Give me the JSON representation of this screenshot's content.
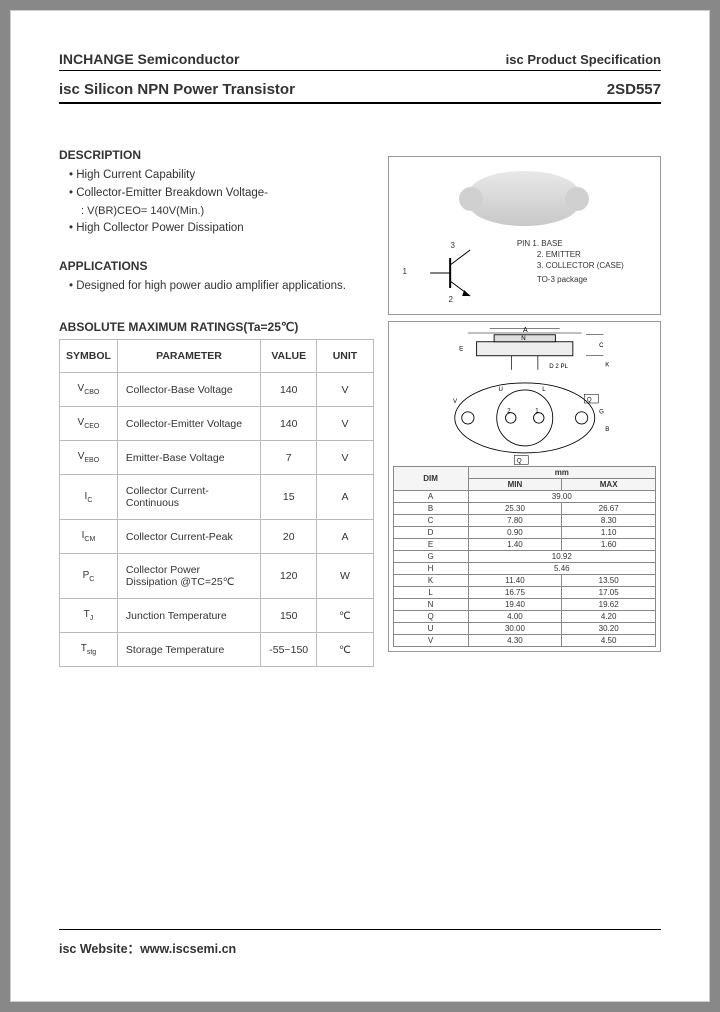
{
  "header": {
    "company": "INCHANGE Semiconductor",
    "doc_type": "isc Product Specification"
  },
  "subheader": {
    "title": "isc Silicon NPN Power Transistor",
    "part_no": "2SD557"
  },
  "description": {
    "heading": "DESCRIPTION",
    "items": [
      "High Current Capability",
      "Collector-Emitter Breakdown Voltage-"
    ],
    "sub_item": ": V(BR)CEO= 140V(Min.)",
    "tail": "High Collector Power Dissipation"
  },
  "applications": {
    "heading": "APPLICATIONS",
    "text": "Designed for high power audio amplifier applications."
  },
  "ratings": {
    "heading": "ABSOLUTE MAXIMUM RATINGS(Ta=25℃)",
    "columns": [
      "SYMBOL",
      "PARAMETER",
      "VALUE",
      "UNIT"
    ],
    "rows": [
      {
        "sym": "V",
        "sub": "CBO",
        "param": "Collector-Base Voltage",
        "value": "140",
        "unit": "V"
      },
      {
        "sym": "V",
        "sub": "CEO",
        "param": "Collector-Emitter Voltage",
        "value": "140",
        "unit": "V"
      },
      {
        "sym": "V",
        "sub": "EBO",
        "param": "Emitter-Base Voltage",
        "value": "7",
        "unit": "V"
      },
      {
        "sym": "I",
        "sub": "C",
        "param": "Collector Current-Continuous",
        "value": "15",
        "unit": "A"
      },
      {
        "sym": "I",
        "sub": "CM",
        "param": "Collector Current-Peak",
        "value": "20",
        "unit": "A"
      },
      {
        "sym": "P",
        "sub": "C",
        "param": "Collector Power Dissipation @TC=25℃",
        "value": "120",
        "unit": "W"
      },
      {
        "sym": "T",
        "sub": "J",
        "param": "Junction Temperature",
        "value": "150",
        "unit": "℃"
      },
      {
        "sym": "T",
        "sub": "stg",
        "param": "Storage Temperature",
        "value": "-55~150",
        "unit": "℃"
      }
    ]
  },
  "package": {
    "pin_heading": "PIN",
    "pins": [
      "1. BASE",
      "2. EMITTER",
      "3. COLLECTOR (CASE)"
    ],
    "pkg_name": "TO-3 package",
    "pin_nums": [
      "1",
      "2",
      "3"
    ]
  },
  "dimensions": {
    "unit_label": "mm",
    "head": [
      "DIM",
      "MIN",
      "MAX"
    ],
    "rows": [
      [
        "A",
        "39.00",
        ""
      ],
      [
        "B",
        "25.30",
        "26.67"
      ],
      [
        "C",
        "7.80",
        "8.30"
      ],
      [
        "D",
        "0.90",
        "1.10"
      ],
      [
        "E",
        "1.40",
        "1.60"
      ],
      [
        "G",
        "10.92",
        ""
      ],
      [
        "H",
        "5.46",
        ""
      ],
      [
        "K",
        "11.40",
        "13.50"
      ],
      [
        "L",
        "16.75",
        "17.05"
      ],
      [
        "N",
        "19.40",
        "19.62"
      ],
      [
        "Q",
        "4.00",
        "4.20"
      ],
      [
        "U",
        "30.00",
        "30.20"
      ],
      [
        "V",
        "4.30",
        "4.50"
      ]
    ],
    "outline_letters": [
      "A",
      "N",
      "C",
      "E",
      "K",
      "D",
      "U",
      "L",
      "V",
      "G",
      "B",
      "Q"
    ]
  },
  "footer": {
    "label": "isc Website：",
    "url": "www.iscsemi.cn"
  }
}
